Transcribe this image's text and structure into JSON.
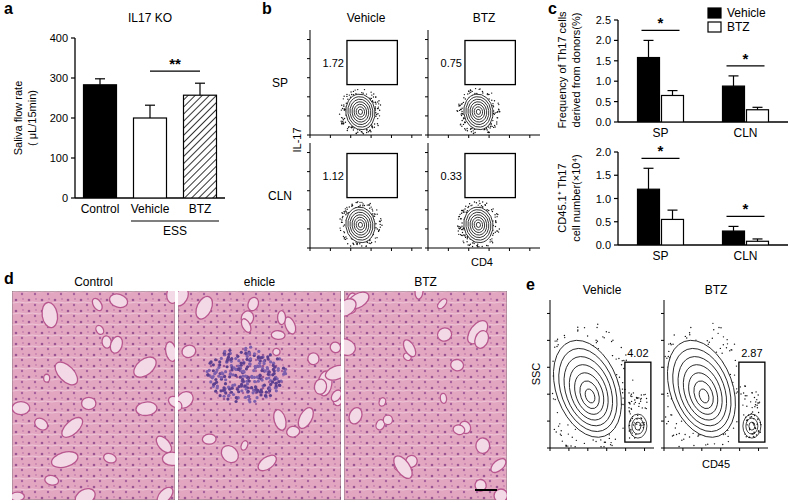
{
  "chart_data": [
    {
      "panel": "a",
      "type": "bar",
      "title": "IL17 KO",
      "ylabel": [
        "Saliva flow rate",
        "( μL/15min)"
      ],
      "categories": [
        "Control",
        "Vehicle",
        "BTZ"
      ],
      "values": [
        283,
        200,
        257
      ],
      "errors": [
        15,
        32,
        30
      ],
      "colors": [
        "#000000",
        "#ffffff",
        "#ffffff"
      ],
      "ylim": [
        0,
        400
      ],
      "yticks": [
        0,
        100,
        200,
        300,
        400
      ],
      "groups": [
        {
          "label": "ESS",
          "categories": [
            "Vehicle",
            "BTZ"
          ]
        }
      ],
      "annotations": [
        {
          "text": "**",
          "between": [
            "Vehicle",
            "BTZ"
          ]
        }
      ]
    },
    {
      "panel": "c",
      "type": "bar",
      "ylabel": [
        "Frequency of Th17 cells",
        "derived from donors(%)"
      ],
      "categories": [
        "SP",
        "CLN"
      ],
      "series": [
        {
          "name": "Vehicle",
          "color": "#000000",
          "values": [
            1.58,
            0.88
          ],
          "errors": [
            0.42,
            0.25
          ]
        },
        {
          "name": "BTZ",
          "color": "#ffffff",
          "values": [
            0.65,
            0.3
          ],
          "errors": [
            0.12,
            0.06
          ]
        }
      ],
      "ylim": [
        0,
        2.5
      ],
      "yticks": [
        {
          "value": 0,
          "label": "0.0"
        },
        {
          "value": 0.5,
          "label": "0.5"
        },
        {
          "value": 1,
          "label": "1.0"
        },
        {
          "value": 1.5,
          "label": "1.5"
        },
        {
          "value": 2,
          "label": "2.0"
        },
        {
          "value": 2.5,
          "label": "2.5"
        }
      ],
      "legend": "upper right",
      "annotations": [
        {
          "text": "*",
          "category": "SP"
        },
        {
          "text": "*",
          "category": "CLN"
        }
      ]
    },
    {
      "type": "bar",
      "ylabel": [
        "CD45.1⁺ Th17",
        "cell number(×10⁴)"
      ],
      "categories": [
        "SP",
        "CLN"
      ],
      "series": [
        {
          "name": "Vehicle",
          "color": "#000000",
          "values": [
            1.2,
            0.3
          ],
          "errors": [
            0.45,
            0.1
          ]
        },
        {
          "name": "BTZ",
          "color": "#ffffff",
          "values": [
            0.55,
            0.08
          ],
          "errors": [
            0.2,
            0.05
          ]
        }
      ],
      "ylim": [
        0,
        2
      ],
      "yticks": [
        {
          "value": 0,
          "label": "0.0"
        },
        {
          "value": 0.5,
          "label": "0.5"
        },
        {
          "value": 1,
          "label": "1.0"
        },
        {
          "value": 1.5,
          "label": "1.5"
        },
        {
          "value": 2,
          "label": "2.0"
        }
      ],
      "annotations": [
        {
          "text": "*",
          "category": "SP"
        },
        {
          "text": "*",
          "category": "CLN"
        }
      ]
    }
  ],
  "panels": {
    "b": {
      "panel": "b",
      "columns": [
        "Vehicle",
        "BTZ"
      ],
      "rows": [
        "SP",
        "CLN"
      ],
      "ylabel": "IL-17",
      "xlabel": "CD4",
      "gates": [
        [
          1.72,
          0.75
        ],
        [
          1.12,
          0.33
        ]
      ]
    },
    "d": {
      "panel": "d",
      "titles": [
        "Control",
        "ehicle",
        "BTZ"
      ]
    },
    "e": {
      "panel": "e",
      "columns": [
        "Vehicle",
        "BTZ"
      ],
      "ylabel": "SSC",
      "xlabel": "CD45",
      "gates": [
        4.02,
        2.87
      ]
    }
  }
}
